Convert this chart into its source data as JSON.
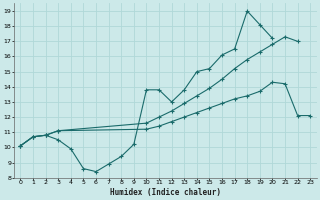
{
  "xlabel": "Humidex (Indice chaleur)",
  "xlim": [
    -0.5,
    23.5
  ],
  "ylim": [
    8,
    19.5
  ],
  "xticks": [
    0,
    1,
    2,
    3,
    4,
    5,
    6,
    7,
    8,
    9,
    10,
    11,
    12,
    13,
    14,
    15,
    16,
    17,
    18,
    19,
    20,
    21,
    22,
    23
  ],
  "yticks": [
    8,
    9,
    10,
    11,
    12,
    13,
    14,
    15,
    16,
    17,
    18,
    19
  ],
  "background_color": "#cce9e9",
  "grid_color": "#b0d8d8",
  "line_color": "#1a6b6b",
  "line1_x": [
    0,
    1,
    2,
    3,
    4,
    5,
    6,
    7,
    8,
    9,
    10,
    11,
    12,
    13,
    14,
    15,
    16,
    17,
    18,
    19,
    20
  ],
  "line1_y": [
    10.1,
    10.7,
    10.8,
    10.5,
    9.9,
    8.6,
    8.4,
    8.9,
    9.4,
    10.2,
    13.8,
    13.8,
    13.0,
    13.8,
    15.0,
    15.2,
    16.1,
    16.5,
    19.0,
    18.1,
    17.2
  ],
  "line2_x": [
    0,
    1,
    2,
    3,
    10,
    11,
    12,
    13,
    14,
    15,
    16,
    17,
    18,
    19,
    20,
    21,
    22
  ],
  "line2_y": [
    10.1,
    10.7,
    10.8,
    11.1,
    11.6,
    12.0,
    12.4,
    12.9,
    13.4,
    13.9,
    14.5,
    15.2,
    15.8,
    16.3,
    16.8,
    17.3,
    17.0
  ],
  "line3_x": [
    0,
    1,
    2,
    3,
    10,
    11,
    12,
    13,
    14,
    15,
    16,
    17,
    18,
    19,
    20,
    21,
    22,
    23
  ],
  "line3_y": [
    10.1,
    10.7,
    10.8,
    11.1,
    11.2,
    11.4,
    11.7,
    12.0,
    12.3,
    12.6,
    12.9,
    13.2,
    13.4,
    13.7,
    14.3,
    14.2,
    12.1,
    12.1
  ]
}
